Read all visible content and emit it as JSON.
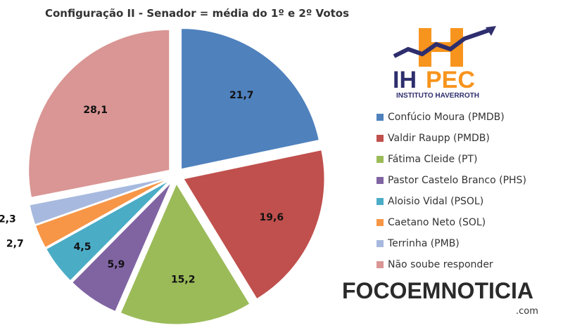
{
  "chart_data": {
    "type": "pie",
    "title": "Configuração II - Senador = média do 1º e 2º Votos",
    "categories": [
      "Confúcio Moura (PMDB)",
      "Valdir Raupp (PMDB)",
      "Fátima Cleide (PT)",
      "Pastor Castelo Branco (PHS)",
      "Aloisio Vidal (PSOL)",
      "Caetano Neto (SOL)",
      "Terrinha (PMB)",
      "Não soube responder"
    ],
    "values": [
      21.7,
      19.6,
      15.2,
      5.9,
      4.5,
      2.7,
      2.3,
      28.1
    ],
    "data_labels": [
      "21,7",
      "19,6",
      "15,2",
      "5,9",
      "4,5",
      "2,7",
      "2,3",
      "28,1"
    ],
    "colors": [
      "#4F81BD",
      "#C0504D",
      "#9BBB59",
      "#8064A2",
      "#4BACC6",
      "#F79646",
      "#A7B9DE",
      "#D99694"
    ],
    "legend_position": "right",
    "exploded": true
  },
  "logo": {
    "main": "IHPEC",
    "sub": "INSTITUTO HAVERROTH"
  },
  "watermark": {
    "text": "FOCOEMNOTICIA",
    "suffix": ".com"
  }
}
